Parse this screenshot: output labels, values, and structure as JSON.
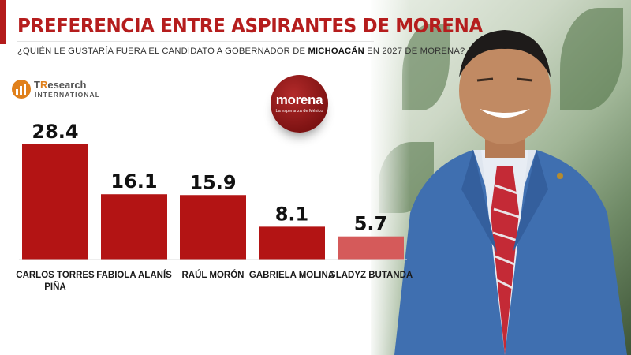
{
  "header": {
    "title": "PREFERENCIA ENTRE ASPIRANTES DE MORENA",
    "subtitle_pre": "¿QUIÉN LE GUSTARÍA FUERA EL CANDIDATO A GOBERNADOR DE ",
    "subtitle_bold": "MICHOACÁN",
    "subtitle_post": " EN 2027 DE MORENA?"
  },
  "logo": {
    "brand_prefix": "T",
    "brand_r": "R",
    "brand_rest": "esearch",
    "brand_sub": "INTERNATIONAL"
  },
  "party_logo": {
    "name": "morena",
    "tagline": "La esperanza de México"
  },
  "colors": {
    "accent": "#b51d1d",
    "bar_dark": "#b31414",
    "bar_last": "#d55a5a"
  },
  "chart_data": {
    "type": "bar",
    "title": "PREFERENCIA ENTRE ASPIRANTES DE MORENA",
    "categories": [
      "CARLOS TORRES PIÑA",
      "FABIOLA ALANÍS",
      "RAÚL MORÓN",
      "GABRIELA MOLINA",
      "GLADYZ BUTANDA"
    ],
    "category_lines": [
      [
        "CARLOS TORRES",
        "PIÑA"
      ],
      [
        "FABIOLA ALANÍS"
      ],
      [
        "RAÚL MORÓN"
      ],
      [
        "GABRIELA MOLINA"
      ],
      [
        "GLADYZ BUTANDA"
      ]
    ],
    "values": [
      28.4,
      16.1,
      15.9,
      8.1,
      5.7
    ],
    "value_labels": [
      "28.4",
      "16.1",
      "15.9",
      "8.1",
      "5.7"
    ],
    "ylim": [
      0,
      30
    ],
    "grid": false,
    "legend": "none"
  }
}
